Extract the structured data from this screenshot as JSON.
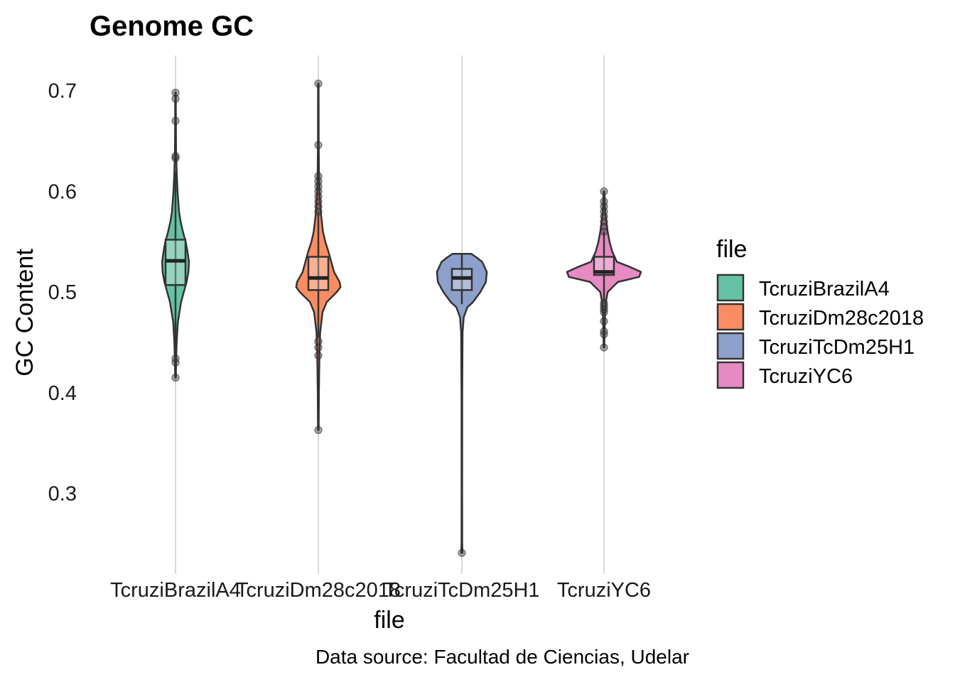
{
  "chart_data": {
    "type": "violin",
    "title": "Genome GC",
    "xlabel": "file",
    "ylabel": "GC Content",
    "caption": "Data source: Facultad de Ciencias, Udelar",
    "legend_title": "file",
    "legend_position": "right",
    "grid": "major vertical gridlines only",
    "ylim": [
      0.22,
      0.735
    ],
    "y_ticks": [
      "0.3",
      "0.4",
      "0.5",
      "0.6",
      "0.7"
    ],
    "categories": [
      "TcruziBrazilA4",
      "TcruziDm28c2018",
      "TcruziTcDm25H1",
      "TcruziYC6"
    ],
    "series": [
      {
        "name": "TcruziBrazilA4",
        "color": "#66c2a5",
        "box": {
          "q1": 0.507,
          "median": 0.531,
          "q3": 0.552,
          "whisker_low": 0.44,
          "whisker_high": 0.62
        },
        "range": [
          0.415,
          0.698
        ],
        "outliers": [
          0.415,
          0.43,
          0.434,
          0.633,
          0.635,
          0.67,
          0.692,
          0.698
        ],
        "violin": [
          [
            0.415,
            0.004
          ],
          [
            0.43,
            0.006
          ],
          [
            0.45,
            0.012
          ],
          [
            0.47,
            0.025
          ],
          [
            0.49,
            0.06
          ],
          [
            0.5,
            0.09
          ],
          [
            0.51,
            0.12
          ],
          [
            0.52,
            0.14
          ],
          [
            0.53,
            0.145
          ],
          [
            0.54,
            0.13
          ],
          [
            0.55,
            0.11
          ],
          [
            0.56,
            0.08
          ],
          [
            0.57,
            0.055
          ],
          [
            0.58,
            0.038
          ],
          [
            0.6,
            0.022
          ],
          [
            0.62,
            0.012
          ],
          [
            0.64,
            0.006
          ],
          [
            0.67,
            0.004
          ],
          [
            0.698,
            0.003
          ]
        ]
      },
      {
        "name": "TcruziDm28c2018",
        "color": "#fc8d62",
        "box": {
          "q1": 0.502,
          "median": 0.514,
          "q3": 0.535,
          "whisker_low": 0.455,
          "whisker_high": 0.58
        },
        "range": [
          0.363,
          0.707
        ],
        "outliers": [
          0.363,
          0.437,
          0.445,
          0.451,
          0.58,
          0.585,
          0.59,
          0.595,
          0.6,
          0.605,
          0.61,
          0.615,
          0.646,
          0.707
        ],
        "violin": [
          [
            0.363,
            0.004
          ],
          [
            0.4,
            0.006
          ],
          [
            0.44,
            0.012
          ],
          [
            0.46,
            0.02
          ],
          [
            0.48,
            0.045
          ],
          [
            0.49,
            0.09
          ],
          [
            0.5,
            0.2
          ],
          [
            0.505,
            0.24
          ],
          [
            0.51,
            0.23
          ],
          [
            0.52,
            0.17
          ],
          [
            0.53,
            0.14
          ],
          [
            0.54,
            0.11
          ],
          [
            0.55,
            0.075
          ],
          [
            0.56,
            0.05
          ],
          [
            0.58,
            0.025
          ],
          [
            0.6,
            0.012
          ],
          [
            0.62,
            0.007
          ],
          [
            0.65,
            0.004
          ],
          [
            0.707,
            0.003
          ]
        ]
      },
      {
        "name": "TcruziTcDm25H1",
        "color": "#8da0cb",
        "box": {
          "q1": 0.502,
          "median": 0.514,
          "q3": 0.523,
          "whisker_low": 0.488,
          "whisker_high": 0.537
        },
        "range": [
          0.241,
          0.538
        ],
        "outliers": [
          0.241
        ],
        "violin": [
          [
            0.241,
            0.006
          ],
          [
            0.25,
            0.004
          ],
          [
            0.3,
            0.003
          ],
          [
            0.4,
            0.004
          ],
          [
            0.46,
            0.008
          ],
          [
            0.475,
            0.02
          ],
          [
            0.485,
            0.06
          ],
          [
            0.49,
            0.12
          ],
          [
            0.5,
            0.2
          ],
          [
            0.51,
            0.26
          ],
          [
            0.52,
            0.27
          ],
          [
            0.53,
            0.22
          ],
          [
            0.535,
            0.15
          ],
          [
            0.538,
            0.1
          ]
        ]
      },
      {
        "name": "TcruziYC6",
        "color": "#e78ac3",
        "box": {
          "q1": 0.517,
          "median": 0.52,
          "q3": 0.535,
          "whisker_low": 0.49,
          "whisker_high": 0.56
        },
        "range": [
          0.445,
          0.6
        ],
        "outliers": [
          0.445,
          0.458,
          0.461,
          0.471,
          0.48,
          0.483,
          0.486,
          0.489,
          0.56,
          0.565,
          0.57,
          0.575,
          0.58,
          0.585,
          0.59,
          0.6
        ],
        "violin": [
          [
            0.445,
            0.004
          ],
          [
            0.46,
            0.006
          ],
          [
            0.48,
            0.012
          ],
          [
            0.49,
            0.02
          ],
          [
            0.5,
            0.04
          ],
          [
            0.51,
            0.15
          ],
          [
            0.515,
            0.38
          ],
          [
            0.52,
            0.4
          ],
          [
            0.525,
            0.28
          ],
          [
            0.53,
            0.14
          ],
          [
            0.54,
            0.09
          ],
          [
            0.55,
            0.06
          ],
          [
            0.56,
            0.04
          ],
          [
            0.57,
            0.025
          ],
          [
            0.58,
            0.012
          ],
          [
            0.6,
            0.004
          ]
        ]
      }
    ]
  }
}
